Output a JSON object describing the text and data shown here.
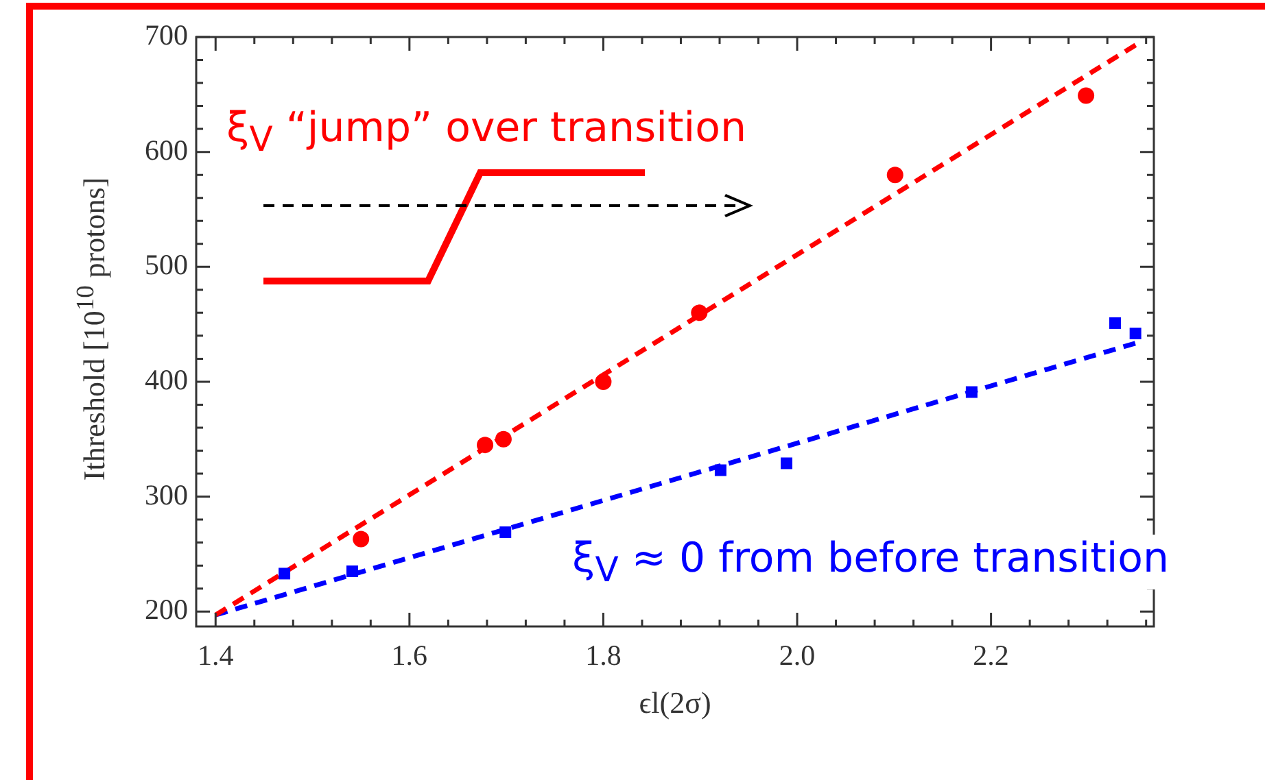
{
  "chart_data": {
    "type": "scatter",
    "xlabel": "ϵl(2σ)",
    "ylabel": "Ithreshold [10$^{10}$ protons]",
    "xlim": [
      1.38,
      2.368
    ],
    "ylim": [
      187,
      700
    ],
    "xticks": [
      1.4,
      1.6,
      1.8,
      {
        "value": 2.0,
        "label": "2.0"
      },
      2.2
    ],
    "yticks": [
      200,
      300,
      400,
      500,
      600,
      700
    ],
    "grid": false,
    "legend": false,
    "series": [
      {
        "type": "scatter",
        "color": "#ff0000",
        "marker": "circle",
        "x": [
          1.55,
          1.678,
          1.697,
          1.8,
          1.899,
          2.101,
          2.298
        ],
        "values": [
          263,
          345,
          350,
          400,
          460,
          580,
          649
        ]
      },
      {
        "type": "scatter",
        "color": "#0000ff",
        "marker": "square",
        "x": [
          1.471,
          1.541,
          1.699,
          1.921,
          1.989,
          2.18,
          2.328,
          2.349
        ],
        "values": [
          233,
          235,
          269,
          323,
          329,
          391,
          451,
          442
        ]
      },
      {
        "type": "line",
        "color": "#ff0000",
        "line_style": "dashed",
        "marker": "none",
        "x": [
          1.4,
          2.351
        ],
        "values": [
          197,
          694
        ]
      },
      {
        "type": "line",
        "color": "#0000ff",
        "line_style": "dashed",
        "marker": "none",
        "x": [
          1.4,
          2.351
        ],
        "values": [
          197,
          434
        ]
      }
    ],
    "annotations": [
      "ξ$_{V}$ “jump” over transition",
      "ξ$_{V}$ ≈ 0 from before transition"
    ]
  }
}
